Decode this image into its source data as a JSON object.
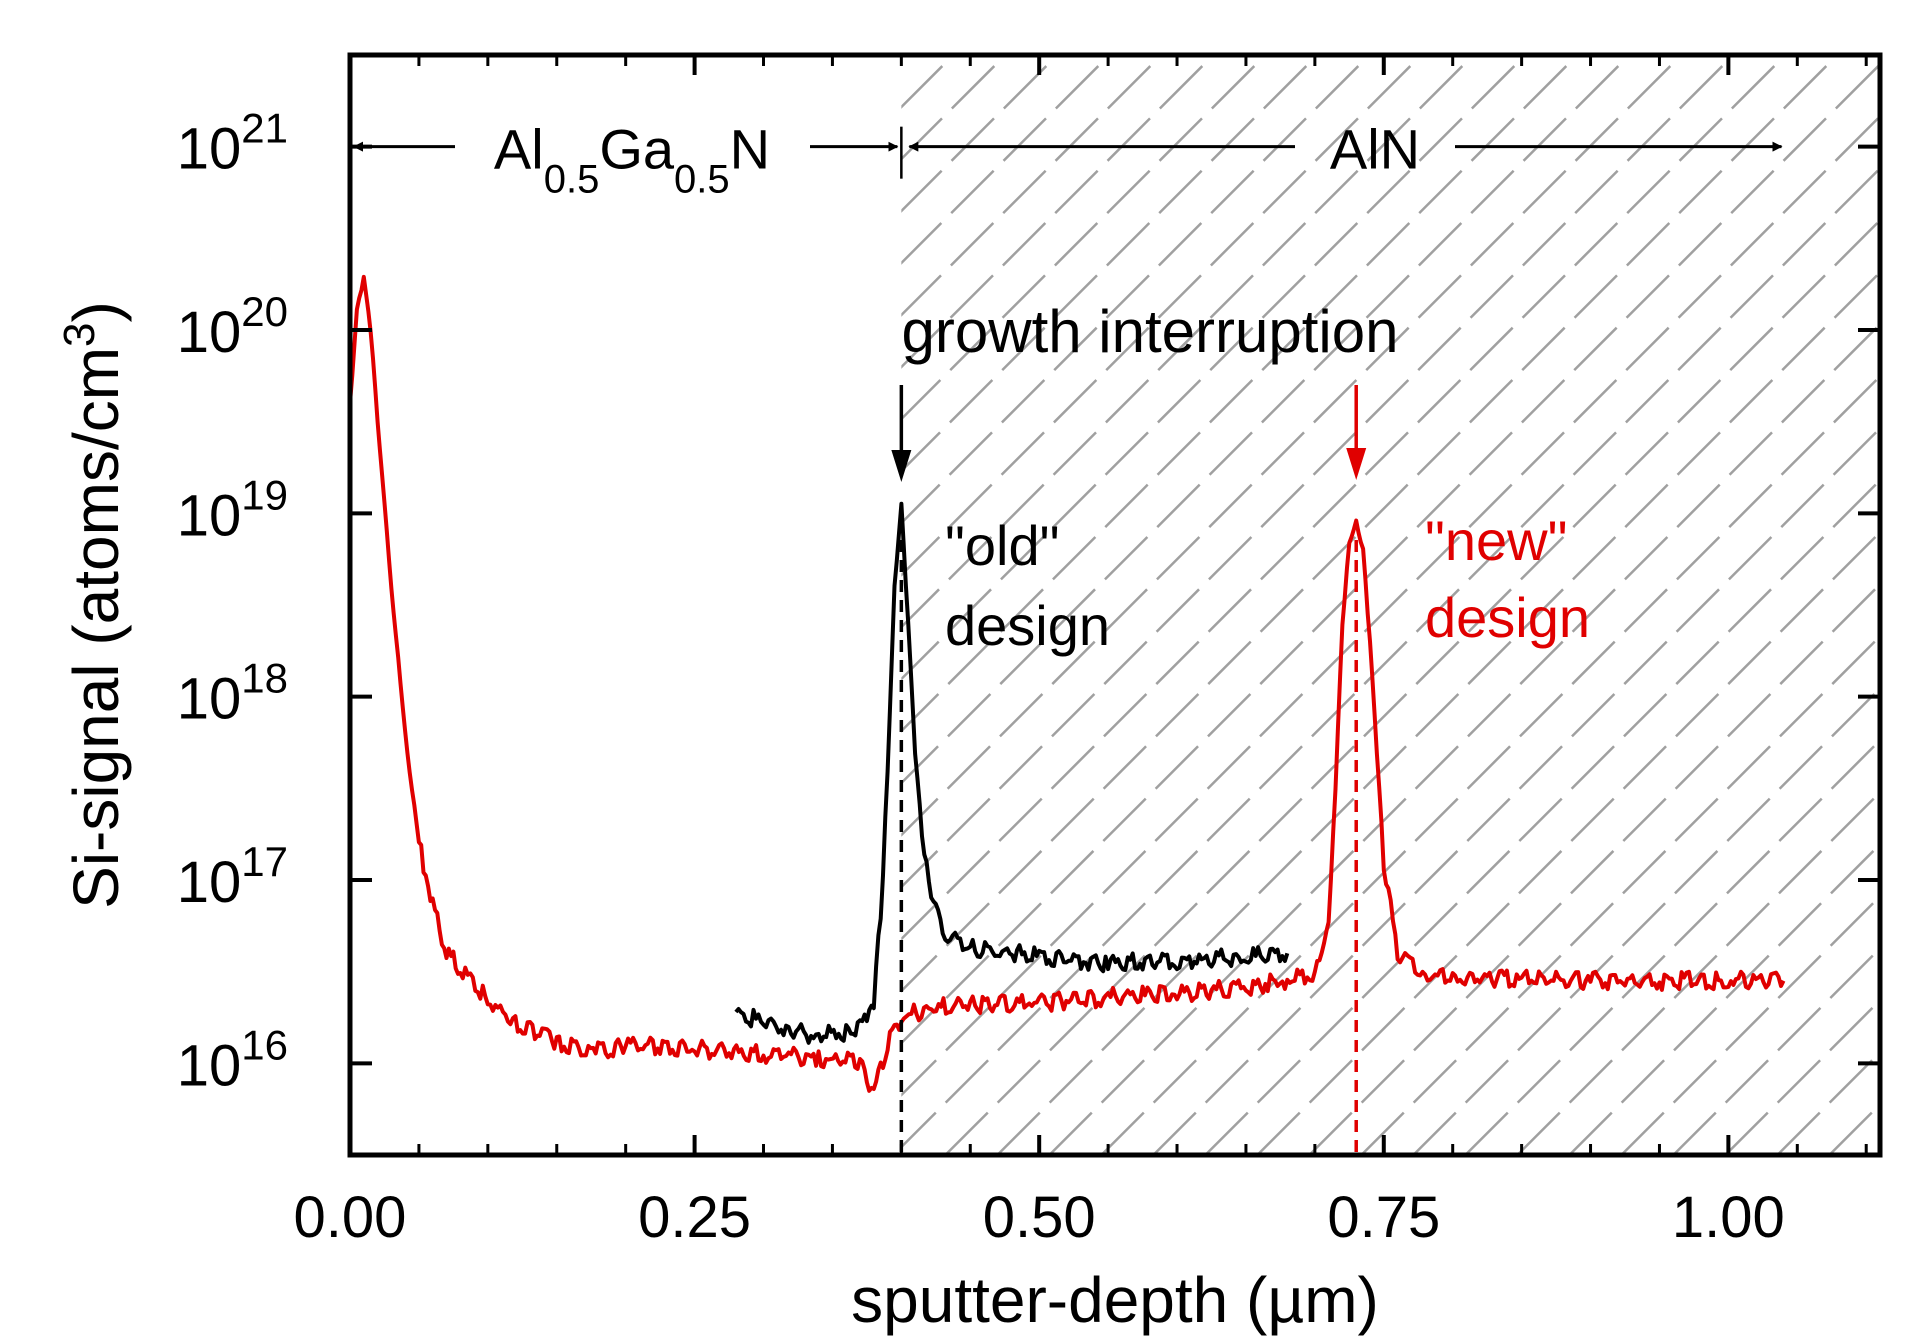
{
  "chart_data": {
    "type": "line",
    "title": "",
    "xlabel": "sputter-depth (µm)",
    "ylabel": "Si-signal (atoms/cm",
    "ylabel_sup": "3",
    "ylabel_close": ")",
    "xlim": [
      0.0,
      1.11
    ],
    "ylim_log10": [
      15.5,
      21.5
    ],
    "yscale": "log",
    "grid": false,
    "x_ticks": [
      {
        "value": 0.0,
        "label": "0.00"
      },
      {
        "value": 0.25,
        "label": "0.25"
      },
      {
        "value": 0.5,
        "label": "0.50"
      },
      {
        "value": 0.75,
        "label": "0.75"
      },
      {
        "value": 1.0,
        "label": "1.00"
      }
    ],
    "y_ticks": [
      {
        "exp": 16,
        "base": "10",
        "sup": "16"
      },
      {
        "exp": 17,
        "base": "10",
        "sup": "17"
      },
      {
        "exp": 18,
        "base": "10",
        "sup": "18"
      },
      {
        "exp": 19,
        "base": "10",
        "sup": "19"
      },
      {
        "exp": 20,
        "base": "10",
        "sup": "20"
      },
      {
        "exp": 21,
        "base": "10",
        "sup": "21"
      }
    ],
    "regions": [
      {
        "label_parts": [
          "Al",
          "0.5",
          "Ga",
          "0.5",
          "N"
        ],
        "x_start": 0.0,
        "x_end": 0.4
      },
      {
        "label": "AlN",
        "x_start": 0.4,
        "x_end": 1.04,
        "hatched": true
      }
    ],
    "series": [
      {
        "color": "#000000",
        "x": [
          0.28,
          0.3,
          0.32,
          0.34,
          0.36,
          0.37,
          0.38,
          0.385,
          0.39,
          0.395,
          0.4,
          0.405,
          0.41,
          0.415,
          0.42,
          0.43,
          0.45,
          0.5,
          0.55,
          0.6,
          0.65,
          0.68
        ],
        "log_y": [
          16.28,
          16.22,
          16.18,
          16.15,
          16.17,
          16.2,
          16.35,
          16.8,
          17.6,
          18.6,
          19.05,
          18.4,
          17.7,
          17.25,
          17.0,
          16.7,
          16.63,
          16.58,
          16.55,
          16.56,
          16.58,
          16.6
        ]
      },
      {
        "color": "#e00000",
        "x": [
          0.0,
          0.005,
          0.01,
          0.015,
          0.02,
          0.03,
          0.04,
          0.05,
          0.06,
          0.07,
          0.08,
          0.1,
          0.12,
          0.15,
          0.18,
          0.2,
          0.25,
          0.3,
          0.34,
          0.37,
          0.38,
          0.39,
          0.4,
          0.42,
          0.45,
          0.5,
          0.55,
          0.6,
          0.65,
          0.68,
          0.7,
          0.71,
          0.715,
          0.72,
          0.725,
          0.73,
          0.735,
          0.74,
          0.745,
          0.75,
          0.76,
          0.78,
          0.8,
          0.85,
          0.9,
          0.95,
          1.0,
          1.04
        ],
        "log_y": [
          19.6,
          20.1,
          20.28,
          20.0,
          19.5,
          18.6,
          17.8,
          17.2,
          16.85,
          16.62,
          16.5,
          16.35,
          16.22,
          16.12,
          16.07,
          16.1,
          16.08,
          16.05,
          16.03,
          16.0,
          15.85,
          16.1,
          16.25,
          16.3,
          16.32,
          16.33,
          16.36,
          16.38,
          16.42,
          16.45,
          16.5,
          16.75,
          17.5,
          18.4,
          18.85,
          18.95,
          18.8,
          18.3,
          17.7,
          17.1,
          16.6,
          16.48,
          16.46,
          16.46,
          16.45,
          16.45,
          16.45,
          16.45
        ]
      }
    ],
    "annotations": {
      "growth": "growth interruption",
      "old_line1": "\"old\"",
      "old_line2": "design",
      "new_line1": "\"new\"",
      "new_line2": "design",
      "old_marker_x": 0.4,
      "new_marker_x": 0.73
    },
    "colors": {
      "old": "#000000",
      "new": "#e00000",
      "hatch": "#a0a0a0"
    }
  }
}
